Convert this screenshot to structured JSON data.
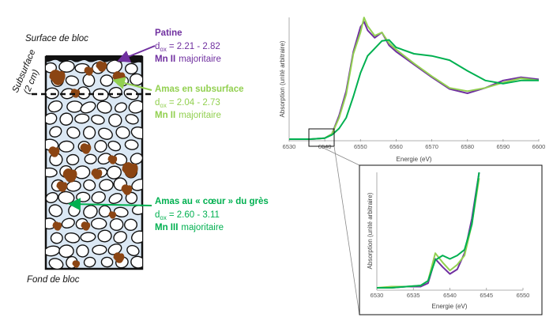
{
  "block": {
    "top_label": "Surface de bloc",
    "bottom_label": "Fond de bloc",
    "subsurface_label": "Subsurface",
    "subsurface_depth": "(2 cm)"
  },
  "annotations": [
    {
      "title": "Patine",
      "dox_symbol": "d",
      "dox_sub": "ox",
      "dox_value": "= 2.21 - 2.82",
      "species": "Mn II",
      "species_suffix": "majoritaire",
      "color": "#7030a0"
    },
    {
      "title": "Amas en subsurface",
      "dox_symbol": "d",
      "dox_sub": "ox",
      "dox_value": "= 2.04 - 2.73",
      "species": "Mn II",
      "species_suffix": "majoritaire",
      "color": "#92d050"
    },
    {
      "title": "Amas au « cœur » du grès",
      "dox_symbol": "d",
      "dox_sub": "ox",
      "dox_value": "= 2.60 - 3.11",
      "species": "Mn III",
      "species_suffix": "majoritaire",
      "color": "#00b050"
    }
  ],
  "colors": {
    "purple": "#7030a0",
    "light_green": "#92d050",
    "green": "#00b050",
    "brown": "#8b4513"
  },
  "chart_data": [
    {
      "type": "line",
      "xlabel": "Energie (eV)",
      "ylabel": "Absorption (unité arbitraire)",
      "xlim": [
        6530,
        6600
      ],
      "x_ticks": [
        "6530",
        "6540",
        "6550",
        "6560",
        "6570",
        "6580",
        "6590",
        "6600"
      ],
      "series": [
        {
          "color": "#7030a0",
          "x": [
            6530,
            6536,
            6540,
            6542,
            6544,
            6546,
            6548,
            6550,
            6551,
            6552,
            6554,
            6556,
            6558,
            6560,
            6565,
            6570,
            6575,
            6580,
            6585,
            6590,
            6595,
            6600
          ],
          "y": [
            0.0,
            0.0,
            0.01,
            0.05,
            0.22,
            0.45,
            0.82,
            1.05,
            1.1,
            1.02,
            0.95,
            1.0,
            0.88,
            0.82,
            0.7,
            0.58,
            0.47,
            0.43,
            0.48,
            0.55,
            0.58,
            0.56
          ]
        },
        {
          "color": "#92d050",
          "x": [
            6530,
            6536,
            6540,
            6542,
            6544,
            6546,
            6548,
            6550,
            6551,
            6552,
            6554,
            6556,
            6558,
            6560,
            6565,
            6570,
            6575,
            6580,
            6585,
            6590,
            6595,
            6600
          ],
          "y": [
            0.0,
            0.0,
            0.01,
            0.05,
            0.2,
            0.42,
            0.8,
            1.0,
            1.14,
            1.06,
            0.97,
            1.0,
            0.9,
            0.84,
            0.71,
            0.59,
            0.48,
            0.45,
            0.48,
            0.53,
            0.57,
            0.55
          ]
        },
        {
          "color": "#00b050",
          "x": [
            6530,
            6536,
            6540,
            6542,
            6544,
            6546,
            6548,
            6550,
            6552,
            6554,
            6556,
            6558,
            6560,
            6565,
            6570,
            6575,
            6580,
            6585,
            6590,
            6595,
            6600
          ],
          "y": [
            0.0,
            0.0,
            0.01,
            0.04,
            0.1,
            0.2,
            0.4,
            0.62,
            0.78,
            0.85,
            0.92,
            0.93,
            0.86,
            0.8,
            0.78,
            0.74,
            0.64,
            0.55,
            0.52,
            0.55,
            0.55
          ]
        }
      ]
    },
    {
      "type": "line",
      "xlabel": "Energie (eV)",
      "ylabel": "Absorption (unité arbitraire)",
      "xlim": [
        6530,
        6550
      ],
      "x_ticks": [
        "6530",
        "6535",
        "6540",
        "6545",
        "6550"
      ],
      "series": [
        {
          "color": "#7030a0",
          "x": [
            6530,
            6532,
            6534,
            6536,
            6537,
            6538,
            6539,
            6540,
            6541,
            6542,
            6543,
            6544
          ],
          "y": [
            0.0,
            0.0,
            0.01,
            0.01,
            0.04,
            0.25,
            0.18,
            0.12,
            0.16,
            0.3,
            0.6,
            1.0
          ]
        },
        {
          "color": "#92d050",
          "x": [
            6530,
            6532,
            6534,
            6536,
            6537,
            6538,
            6539,
            6540,
            6541,
            6542,
            6543,
            6544
          ],
          "y": [
            0.0,
            0.01,
            0.01,
            0.02,
            0.06,
            0.3,
            0.22,
            0.15,
            0.2,
            0.28,
            0.55,
            0.95
          ]
        },
        {
          "color": "#00b050",
          "x": [
            6530,
            6532,
            6534,
            6536,
            6537,
            6538,
            6539,
            6540,
            6541,
            6542,
            6543,
            6544
          ],
          "y": [
            0.0,
            0.0,
            0.01,
            0.02,
            0.06,
            0.24,
            0.28,
            0.25,
            0.28,
            0.33,
            0.55,
            1.0
          ]
        }
      ]
    }
  ]
}
